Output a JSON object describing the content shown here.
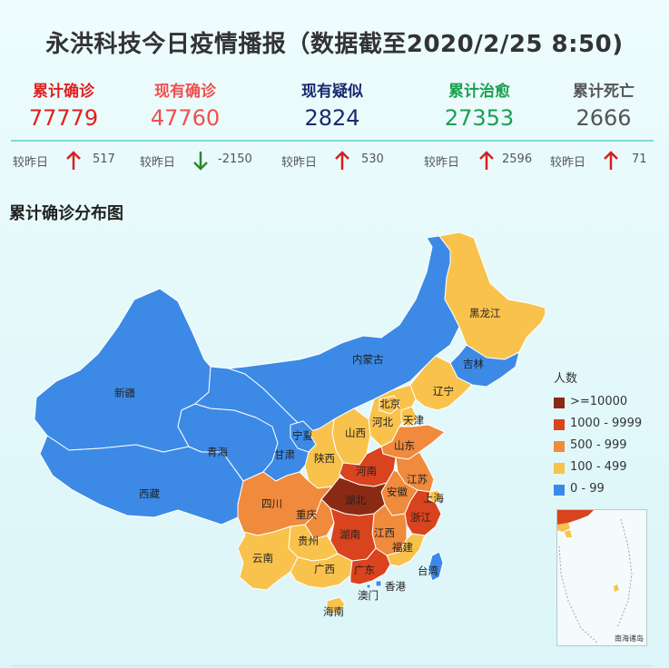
{
  "title": "永洪科技今日疫情播报（数据截至2020/2/25 8:50)",
  "stats": [
    {
      "label": "累计确诊",
      "value": "77779",
      "color": "#e02020",
      "delta_label": "较昨日",
      "delta": "517",
      "direction": "up"
    },
    {
      "label": "现有确诊",
      "value": "47760",
      "color": "#f05050",
      "delta_label": "较昨日",
      "delta": "-2150",
      "direction": "down"
    },
    {
      "label": "现有疑似",
      "value": "2824",
      "color": "#1a2a6e",
      "delta_label": "较昨日",
      "delta": "530",
      "direction": "up"
    },
    {
      "label": "累计治愈",
      "value": "27353",
      "color": "#18a050",
      "delta_label": "较昨日",
      "delta": "2596",
      "direction": "up"
    },
    {
      "label": "累计死亡",
      "value": "2666",
      "color": "#555555",
      "delta_label": "较昨日",
      "delta": "71",
      "direction": "up"
    }
  ],
  "colors": {
    "up": "#d42020",
    "down": "#2a8a2a"
  },
  "map_title": "累计确诊分布图",
  "legend": {
    "title": "人数",
    "items": [
      {
        "label": ">=10000",
        "color": "#8b2a14"
      },
      {
        "label": "1000 - 9999",
        "color": "#d9431e"
      },
      {
        "label": "500 - 999",
        "color": "#f08a3c"
      },
      {
        "label": "100 - 499",
        "color": "#f8c24c"
      },
      {
        "label": "0 - 99",
        "color": "#3c8ae6"
      }
    ]
  },
  "provinces": [
    {
      "name": "新疆",
      "level": "0 - 99"
    },
    {
      "name": "西藏",
      "level": "0 - 99"
    },
    {
      "name": "青海",
      "level": "0 - 99"
    },
    {
      "name": "甘肃",
      "level": "0 - 99"
    },
    {
      "name": "内蒙古",
      "level": "0 - 99"
    },
    {
      "name": "宁夏",
      "level": "0 - 99"
    },
    {
      "name": "吉林",
      "level": "0 - 99"
    },
    {
      "name": "台湾",
      "level": "0 - 99"
    },
    {
      "name": "澳门",
      "level": "0 - 99"
    },
    {
      "name": "香港",
      "level": "0 - 99"
    },
    {
      "name": "黑龙江",
      "level": "100 - 499"
    },
    {
      "name": "辽宁",
      "level": "100 - 499"
    },
    {
      "name": "北京",
      "level": "100 - 499"
    },
    {
      "name": "天津",
      "level": "100 - 499"
    },
    {
      "name": "河北",
      "level": "100 - 499"
    },
    {
      "name": "山西",
      "level": "100 - 499"
    },
    {
      "name": "陕西",
      "level": "100 - 499"
    },
    {
      "name": "重庆",
      "level": "500 - 999"
    },
    {
      "name": "贵州",
      "level": "100 - 499"
    },
    {
      "name": "云南",
      "level": "100 - 499"
    },
    {
      "name": "广西",
      "level": "100 - 499"
    },
    {
      "name": "海南",
      "level": "100 - 499"
    },
    {
      "name": "上海",
      "level": "100 - 499"
    },
    {
      "name": "福建",
      "level": "100 - 499"
    },
    {
      "name": "四川",
      "level": "500 - 999"
    },
    {
      "name": "山东",
      "level": "500 - 999"
    },
    {
      "name": "江苏",
      "level": "500 - 999"
    },
    {
      "name": "江西",
      "level": "500 - 999"
    },
    {
      "name": "安徽",
      "level": "500 - 999"
    },
    {
      "name": "河南",
      "level": "1000 - 9999"
    },
    {
      "name": "湖南",
      "level": "1000 - 9999"
    },
    {
      "name": "广东",
      "level": "1000 - 9999"
    },
    {
      "name": "浙江",
      "level": "1000 - 9999"
    },
    {
      "name": "湖北",
      "level": ">=10000"
    }
  ],
  "inset_label": "南海诸岛"
}
